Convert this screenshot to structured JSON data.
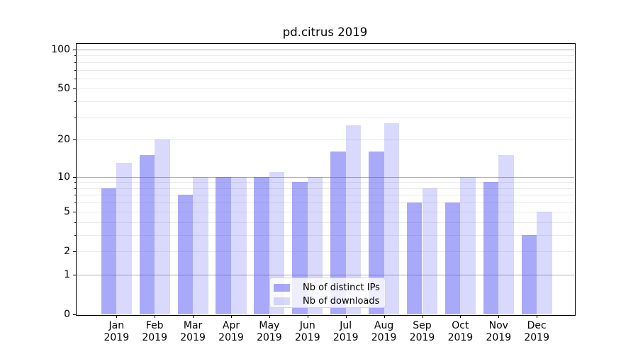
{
  "chart_data": {
    "type": "bar",
    "title": "pd.citrus 2019",
    "categories": [
      "Jan 2019",
      "Feb 2019",
      "Mar 2019",
      "Apr 2019",
      "May 2019",
      "Jun 2019",
      "Jul 2019",
      "Aug 2019",
      "Sep 2019",
      "Oct 2019",
      "Nov 2019",
      "Dec 2019"
    ],
    "series": [
      {
        "name": "Nb of distinct IPs",
        "color": "#5050f5",
        "opacity": 0.49,
        "values": [
          8,
          15,
          7,
          10,
          10,
          9,
          16,
          16,
          6,
          6,
          9,
          3
        ]
      },
      {
        "name": "Nb of downloads",
        "color": "#5050f5",
        "opacity": 0.22,
        "values": [
          13,
          20,
          10,
          10,
          11,
          10,
          26,
          27,
          8,
          10,
          15,
          5
        ]
      }
    ],
    "yscale": "log1p",
    "ylim": [
      0,
      112
    ],
    "y_tick_labels": [
      0,
      1,
      2,
      5,
      10,
      20,
      50,
      100
    ],
    "y_gridlines_strong": [
      1,
      10,
      100
    ],
    "y_gridlines_light": [
      2,
      3,
      4,
      5,
      6,
      7,
      8,
      9,
      20,
      30,
      40,
      50,
      60,
      70,
      80,
      90
    ],
    "grid": true,
    "legend_position": "lower center",
    "xlabel": "",
    "ylabel": ""
  },
  "colors": {
    "grid_strong": "#ababab",
    "grid_light": "#e9e9e9",
    "axis": "#000000",
    "legend_border": "#d4d4d4"
  }
}
